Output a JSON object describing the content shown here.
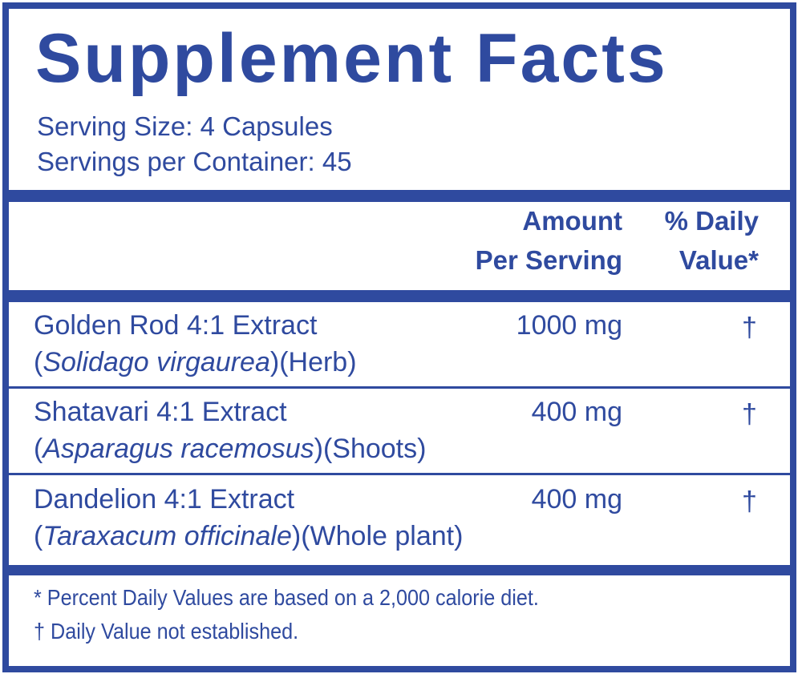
{
  "title": "Supplement Facts",
  "serving_size": "Serving Size: 4 Capsules",
  "servings_per_container": "Servings per Container: 45",
  "header": {
    "amount_line1": "Amount",
    "amount_line2": "Per Serving",
    "dv_line1": "% Daily",
    "dv_line2": "Value*"
  },
  "rows": [
    {
      "name": "Golden Rod 4:1 Extract",
      "latin": "Solidago virgaurea",
      "part": "(Herb)",
      "amount": "1000 mg",
      "dv": "†"
    },
    {
      "name": "Shatavari 4:1 Extract",
      "latin": "Asparagus racemosus",
      "part": "(Shoots)",
      "amount": "400 mg",
      "dv": "†"
    },
    {
      "name": "Dandelion 4:1 Extract",
      "latin": "Taraxacum officinale",
      "part": "(Whole plant)",
      "amount": "400 mg",
      "dv": "†"
    }
  ],
  "footnotes": [
    "* Percent Daily Values are based on a 2,000 calorie diet.",
    "† Daily Value not established."
  ],
  "colors": {
    "brand": "#2f4a9f"
  }
}
